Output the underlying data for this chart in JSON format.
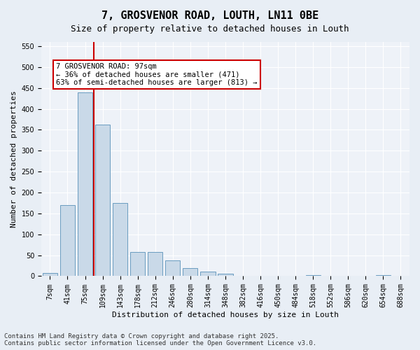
{
  "title": "7, GROSVENOR ROAD, LOUTH, LN11 0BE",
  "subtitle": "Size of property relative to detached houses in Louth",
  "xlabel": "Distribution of detached houses by size in Louth",
  "ylabel": "Number of detached properties",
  "categories": [
    "7sqm",
    "41sqm",
    "75sqm",
    "109sqm",
    "143sqm",
    "178sqm",
    "212sqm",
    "246sqm",
    "280sqm",
    "314sqm",
    "348sqm",
    "382sqm",
    "416sqm",
    "450sqm",
    "484sqm",
    "518sqm",
    "552sqm",
    "586sqm",
    "620sqm",
    "654sqm",
    "688sqm"
  ],
  "values": [
    7,
    170,
    440,
    363,
    175,
    57,
    57,
    38,
    20,
    10,
    5,
    0,
    0,
    0,
    0,
    2,
    0,
    0,
    0,
    2,
    0
  ],
  "bar_color": "#c9d9e8",
  "bar_edge_color": "#6a9cc0",
  "vline_x": 2.5,
  "vline_color": "#cc0000",
  "annotation_text": "7 GROSVENOR ROAD: 97sqm\n← 36% of detached houses are smaller (471)\n63% of semi-detached houses are larger (813) →",
  "annotation_box_color": "#ffffff",
  "annotation_box_edge": "#cc0000",
  "ylim": [
    0,
    560
  ],
  "yticks": [
    0,
    50,
    100,
    150,
    200,
    250,
    300,
    350,
    400,
    450,
    500,
    550
  ],
  "bg_color": "#e8eef5",
  "plot_bg_color": "#eef2f8",
  "footer": "Contains HM Land Registry data © Crown copyright and database right 2025.\nContains public sector information licensed under the Open Government Licence v3.0.",
  "title_fontsize": 11,
  "subtitle_fontsize": 9,
  "axis_label_fontsize": 8,
  "tick_fontsize": 7,
  "annotation_fontsize": 7.5,
  "footer_fontsize": 6.5
}
